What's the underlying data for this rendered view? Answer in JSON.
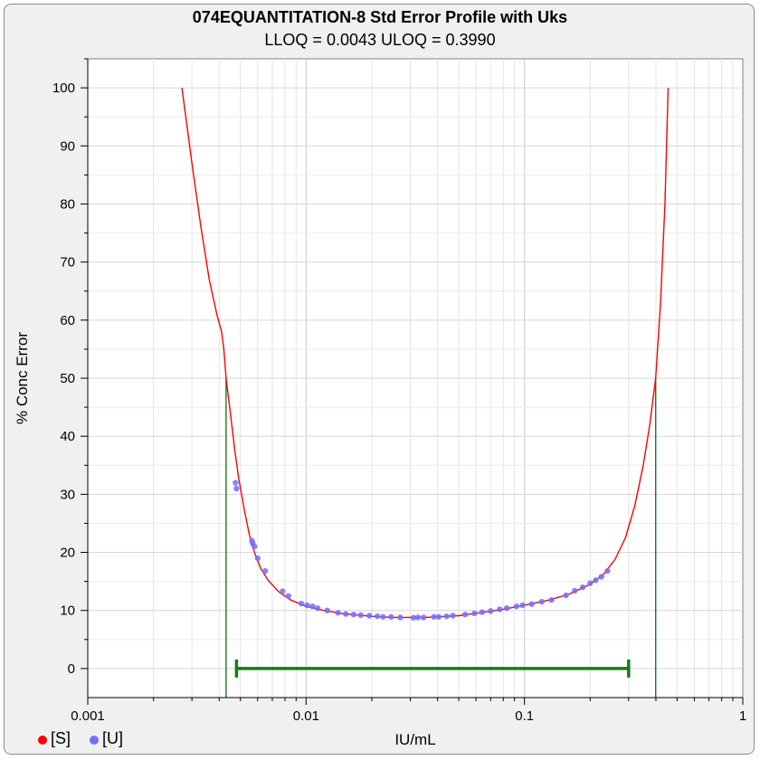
{
  "chart_data": {
    "type": "line",
    "title": "074EQUANTITATION-8 Std Error Profile with Uks",
    "subtitle": "LLOQ = 0.0043  ULOQ = 0.3990",
    "xlabel": "IU/mL",
    "ylabel": "% Conc Error",
    "x_scale": "log",
    "xlim": [
      0.001,
      1
    ],
    "ylim": [
      -5,
      105
    ],
    "x_ticks": [
      {
        "value": 0.001,
        "label": "0.001"
      },
      {
        "value": 0.01,
        "label": "0.01"
      },
      {
        "value": 0.1,
        "label": "0.1"
      },
      {
        "value": 1,
        "label": "1"
      }
    ],
    "y_ticks": [
      {
        "value": 0,
        "label": "0"
      },
      {
        "value": 10,
        "label": "10"
      },
      {
        "value": 20,
        "label": "20"
      },
      {
        "value": 30,
        "label": "30"
      },
      {
        "value": 40,
        "label": "40"
      },
      {
        "value": 50,
        "label": "50"
      },
      {
        "value": 60,
        "label": "60"
      },
      {
        "value": 70,
        "label": "70"
      },
      {
        "value": 80,
        "label": "80"
      },
      {
        "value": 90,
        "label": "90"
      },
      {
        "value": 100,
        "label": "100"
      }
    ],
    "grid": true,
    "legend": {
      "position": "bottom-left",
      "entries": [
        {
          "label": "[S]",
          "color": "#ff0000"
        },
        {
          "label": "[U]",
          "color": "#7070ff"
        }
      ]
    },
    "series": [
      {
        "name": "[S]",
        "color": "#ff0000",
        "x": [
          0.0027,
          0.003,
          0.0033,
          0.0036,
          0.0039,
          0.0041,
          0.0042,
          0.0043,
          0.0045,
          0.0047,
          0.0049,
          0.0052,
          0.0055,
          0.0058,
          0.0062,
          0.0067,
          0.0075,
          0.0085,
          0.01,
          0.012,
          0.015,
          0.02,
          0.025,
          0.03,
          0.035,
          0.04,
          0.05,
          0.06,
          0.08,
          0.1,
          0.13,
          0.16,
          0.2,
          0.23,
          0.26,
          0.29,
          0.32,
          0.35,
          0.375,
          0.399,
          0.42,
          0.44,
          0.455
        ],
        "y": [
          100,
          87,
          76,
          67,
          61,
          58,
          55,
          50,
          44,
          38,
          33,
          27.5,
          23,
          20,
          17.2,
          15.2,
          13.2,
          11.8,
          10.7,
          10,
          9.4,
          9,
          8.8,
          8.8,
          8.8,
          8.9,
          9.1,
          9.5,
          10.2,
          10.9,
          11.8,
          12.8,
          14.5,
          16.2,
          18.8,
          22.5,
          28,
          35,
          42,
          50,
          63,
          80,
          100
        ]
      },
      {
        "name": "[U]",
        "color": "#7070ff",
        "type": "scatter",
        "x": [
          0.00475,
          0.0048,
          0.00565,
          0.0057,
          0.0058,
          0.006,
          0.0065,
          0.0078,
          0.0083,
          0.0095,
          0.0101,
          0.0107,
          0.0113,
          0.0125,
          0.014,
          0.0152,
          0.0165,
          0.0178,
          0.0195,
          0.0212,
          0.0225,
          0.0245,
          0.027,
          0.031,
          0.0325,
          0.0345,
          0.0385,
          0.0405,
          0.044,
          0.047,
          0.0535,
          0.059,
          0.064,
          0.07,
          0.077,
          0.083,
          0.092,
          0.098,
          0.108,
          0.12,
          0.133,
          0.155,
          0.17,
          0.185,
          0.2,
          0.212,
          0.225,
          0.24
        ],
        "y": [
          32,
          31,
          22,
          21.5,
          21,
          19,
          16.8,
          13.3,
          12.5,
          11.2,
          10.9,
          10.7,
          10.4,
          10,
          9.6,
          9.4,
          9.3,
          9.2,
          9.1,
          9.0,
          8.9,
          8.9,
          8.8,
          8.75,
          8.8,
          8.8,
          8.9,
          8.9,
          9.0,
          9.1,
          9.3,
          9.5,
          9.7,
          9.9,
          10.2,
          10.4,
          10.7,
          10.9,
          11.1,
          11.5,
          11.8,
          12.6,
          13.4,
          14,
          14.7,
          15.2,
          15.8,
          16.8
        ]
      }
    ],
    "annotations": {
      "lloq": 0.0043,
      "uloq": 0.399,
      "range_bar": {
        "x_start": 0.0048,
        "x_end": 0.3,
        "y": 0
      },
      "marker_color": "#1a7a1a"
    }
  }
}
